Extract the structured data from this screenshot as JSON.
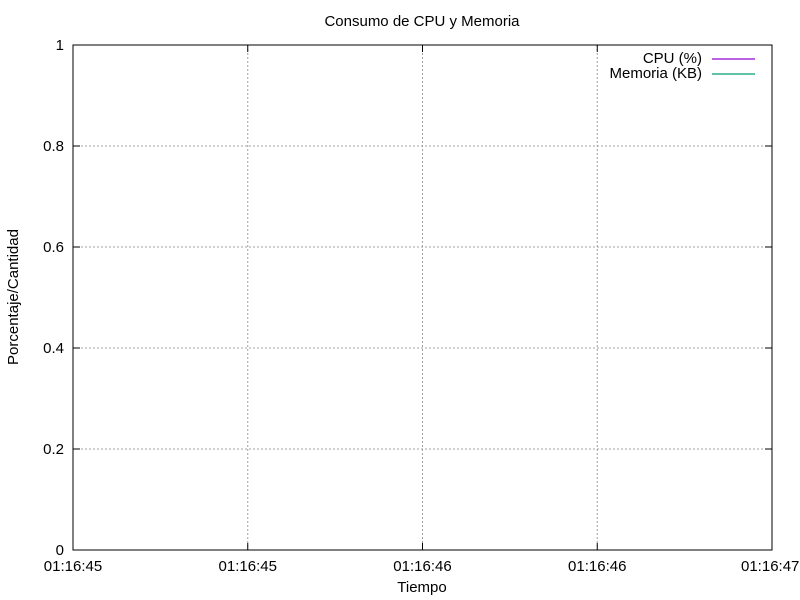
{
  "chart_data": {
    "type": "line",
    "title": "Consumo de CPU y Memoria",
    "xlabel": "Tiempo",
    "ylabel": "Porcentaje/Cantidad",
    "x_tick_labels": [
      "01:16:45",
      "01:16:45",
      "01:16:46",
      "01:16:46",
      "01:16:47"
    ],
    "y_tick_labels": [
      "0",
      "0.2",
      "0.4",
      "0.6",
      "0.8",
      "1"
    ],
    "ylim": [
      0,
      1
    ],
    "grid": true,
    "legend_position": "top-right",
    "series": [
      {
        "name": "CPU (%)",
        "color": "#9400d3",
        "values": []
      },
      {
        "name": "Memoria (KB)",
        "color": "#009e73",
        "values": []
      }
    ]
  }
}
